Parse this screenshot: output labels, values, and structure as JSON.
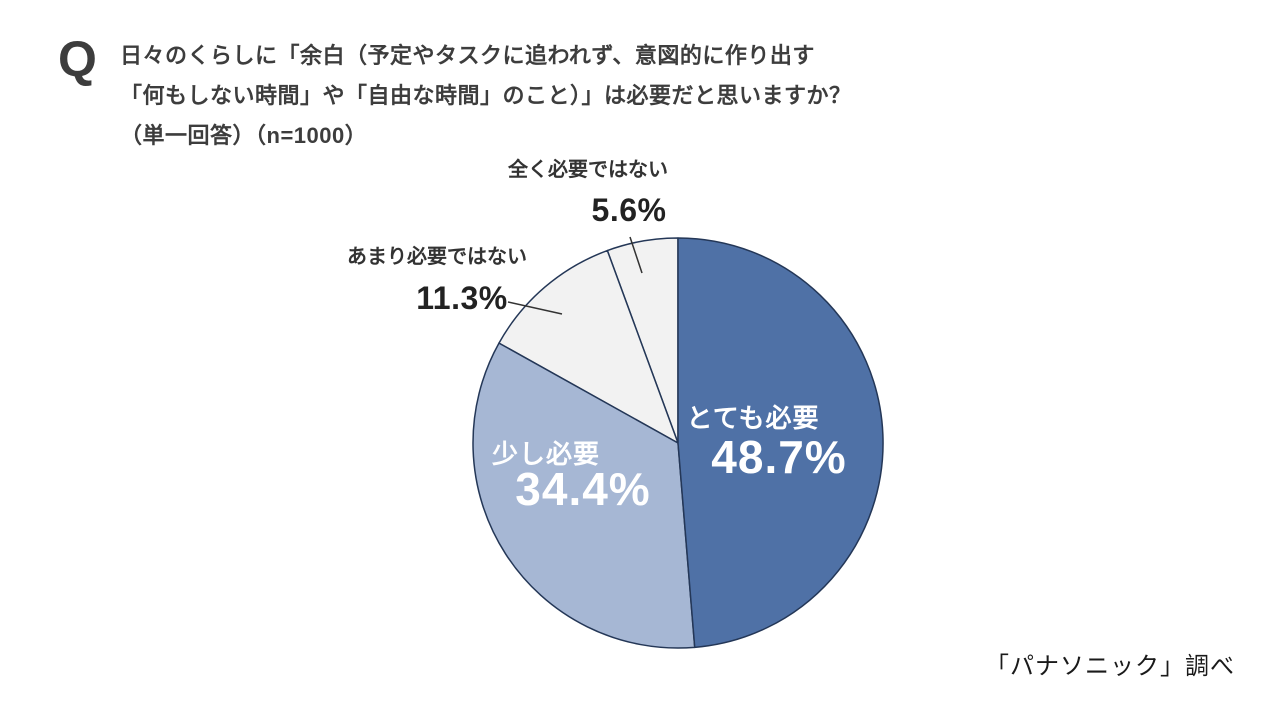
{
  "header": {
    "q_label": "Q",
    "line1": "日々のくらしに「余白（予定やタスクに追われず、意図的に作り出す",
    "line2": "「何もしない時間」や「自由な時間」のこと）」は必要だと思いますか？",
    "line3": "（単一回答）（n=1000）"
  },
  "footer": {
    "credit": "「パナソニック」調べ"
  },
  "chart_data": {
    "type": "pie",
    "title": "日々のくらしに「余白（予定やタスクに追われず、意図的に作り出す「何もしない時間」や「自由な時間」のこと）」は必要だと思いますか？（単一回答）（n=1000）",
    "n": 1000,
    "unit": "%",
    "categories": [
      "とても必要",
      "少し必要",
      "あまり必要ではない",
      "全く必要ではない"
    ],
    "values": [
      48.7,
      34.4,
      11.3,
      5.6
    ],
    "value_labels": [
      "48.7%",
      "34.4%",
      "11.3%",
      "5.6%"
    ],
    "colors": [
      "#4F71A6",
      "#A6B7D4",
      "#F2F2F2",
      "#F2F2F2"
    ],
    "border_color": "#243757",
    "start_angle_deg": 0,
    "direction": "clockwise",
    "label_placement": [
      "inside",
      "inside",
      "outside",
      "outside"
    ],
    "source": "「パナソニック」調べ"
  }
}
